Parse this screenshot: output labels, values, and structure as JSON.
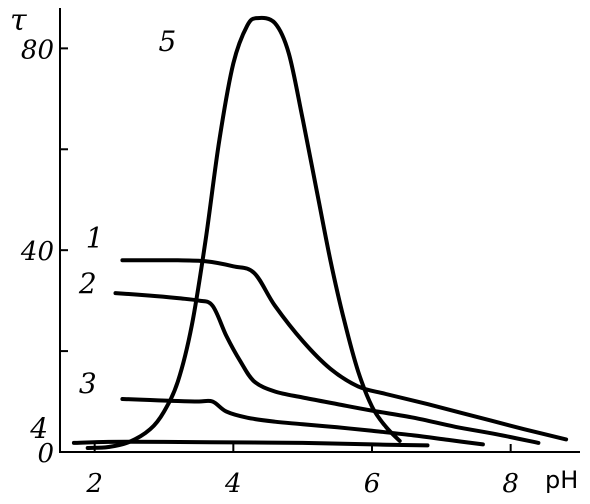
{
  "chart_data": {
    "type": "line",
    "title": "",
    "xlabel": "pH",
    "ylabel": "τ",
    "xlim": [
      1.5,
      9.0
    ],
    "ylim": [
      0,
      88
    ],
    "x_ticks": [
      2,
      4,
      6,
      8
    ],
    "x_tick_labels": [
      "2",
      "4",
      "6",
      "8"
    ],
    "y_ticks": [
      0,
      20,
      40,
      60,
      80
    ],
    "y_tick_labels": [
      "0",
      "",
      "40",
      "",
      "80"
    ],
    "grid": false,
    "legend": "none",
    "line_color": "#000000",
    "series": [
      {
        "name": "1",
        "points": [
          [
            2.4,
            38
          ],
          [
            2.8,
            38
          ],
          [
            3.2,
            38
          ],
          [
            3.6,
            37.8
          ],
          [
            4.0,
            36.8
          ],
          [
            4.3,
            35.5
          ],
          [
            4.6,
            29
          ],
          [
            5.0,
            22
          ],
          [
            5.4,
            16.5
          ],
          [
            5.8,
            13
          ],
          [
            6.2,
            11.5
          ],
          [
            6.8,
            9.5
          ],
          [
            7.5,
            7
          ],
          [
            8.2,
            4.5
          ],
          [
            8.8,
            2.5
          ]
        ]
      },
      {
        "name": "2",
        "points": [
          [
            2.3,
            31.5
          ],
          [
            2.8,
            31
          ],
          [
            3.2,
            30.5
          ],
          [
            3.5,
            30
          ],
          [
            3.7,
            29
          ],
          [
            3.9,
            23
          ],
          [
            4.1,
            18
          ],
          [
            4.3,
            14
          ],
          [
            4.6,
            12
          ],
          [
            5.0,
            10.8
          ],
          [
            5.5,
            9.5
          ],
          [
            6.0,
            8.2
          ],
          [
            6.6,
            6.8
          ],
          [
            7.2,
            5
          ],
          [
            7.8,
            3.5
          ],
          [
            8.4,
            1.8
          ]
        ]
      },
      {
        "name": "3",
        "points": [
          [
            2.4,
            10.5
          ],
          [
            2.8,
            10.3
          ],
          [
            3.2,
            10.1
          ],
          [
            3.5,
            10
          ],
          [
            3.7,
            10
          ],
          [
            3.9,
            8
          ],
          [
            4.2,
            6.8
          ],
          [
            4.6,
            6
          ],
          [
            5.0,
            5.5
          ],
          [
            5.5,
            4.9
          ],
          [
            6.0,
            4.2
          ],
          [
            6.6,
            3.3
          ],
          [
            7.1,
            2.4
          ],
          [
            7.6,
            1.5
          ]
        ]
      },
      {
        "name": "4",
        "points": [
          [
            1.7,
            1.8
          ],
          [
            2.2,
            2
          ],
          [
            3.0,
            2
          ],
          [
            4.0,
            1.9
          ],
          [
            5.0,
            1.8
          ],
          [
            6.0,
            1.5
          ],
          [
            6.8,
            1.3
          ]
        ]
      },
      {
        "name": "5",
        "points": [
          [
            1.9,
            0.8
          ],
          [
            2.2,
            1
          ],
          [
            2.5,
            2
          ],
          [
            2.8,
            4.5
          ],
          [
            3.0,
            8
          ],
          [
            3.2,
            14
          ],
          [
            3.4,
            25
          ],
          [
            3.6,
            42
          ],
          [
            3.8,
            62
          ],
          [
            4.0,
            77
          ],
          [
            4.2,
            84.5
          ],
          [
            4.35,
            86
          ],
          [
            4.6,
            85
          ],
          [
            4.8,
            79
          ],
          [
            5.0,
            66
          ],
          [
            5.2,
            52
          ],
          [
            5.4,
            38
          ],
          [
            5.6,
            26
          ],
          [
            5.8,
            16
          ],
          [
            6.0,
            9
          ],
          [
            6.2,
            5
          ],
          [
            6.4,
            2.2
          ]
        ]
      }
    ],
    "series_labels": [
      {
        "name": "1",
        "text": "1",
        "at": [
          2.0,
          40.5
        ]
      },
      {
        "name": "2",
        "text": "2",
        "at": [
          1.9,
          31.5
        ]
      },
      {
        "name": "3",
        "text": "3",
        "at": [
          1.9,
          11.7
        ]
      },
      {
        "name": "4",
        "text": "4",
        "at": [
          1.2,
          2.8
        ]
      },
      {
        "name": "5",
        "text": "5",
        "at": [
          3.05,
          79.5
        ]
      }
    ]
  }
}
